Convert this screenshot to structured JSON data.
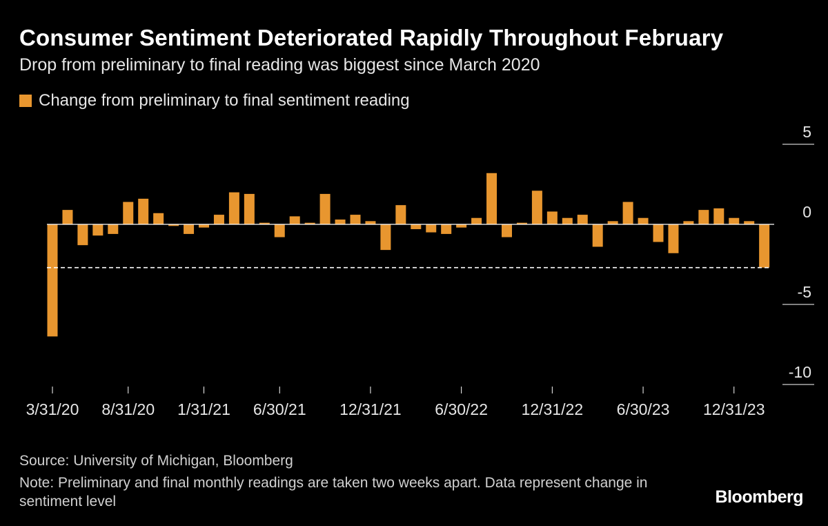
{
  "title": "Consumer Sentiment Deteriorated Rapidly Throughout February",
  "subtitle": "Drop from preliminary to final reading was biggest since March 2020",
  "legend_label": "Change from preliminary to final sentiment reading",
  "source": "Source: University of Michigan, Bloomberg",
  "note": "Note: Preliminary and final monthly readings are taken two weeks apart. Data represent change in sentiment level",
  "brand": "Bloomberg",
  "colors": {
    "bar": "#e8962f",
    "background": "#000000",
    "text": "#ffffff"
  },
  "chart_data": {
    "type": "bar",
    "title": "Consumer Sentiment Deteriorated Rapidly Throughout February",
    "series": [
      {
        "name": "Change from preliminary to final sentiment reading",
        "values": [
          -7.0,
          0.9,
          -1.3,
          -0.7,
          -0.6,
          1.4,
          1.6,
          0.7,
          -0.1,
          -0.6,
          -0.2,
          0.6,
          2.0,
          1.9,
          0.1,
          -0.8,
          0.5,
          0.1,
          1.9,
          0.3,
          0.6,
          0.2,
          -1.6,
          1.2,
          -0.3,
          -0.5,
          -0.6,
          -0.2,
          0.4,
          3.2,
          -0.8,
          0.1,
          2.1,
          0.8,
          0.4,
          0.6,
          -1.4,
          0.2,
          1.4,
          0.4,
          -1.1,
          -1.8,
          0.2,
          0.9,
          1.0,
          0.4,
          0.2,
          -2.7
        ]
      }
    ],
    "x_tick_labels": [
      "3/31/20",
      "8/31/20",
      "1/31/21",
      "6/30/21",
      "12/31/21",
      "6/30/22",
      "12/31/22",
      "6/30/23",
      "12/31/23"
    ],
    "x_tick_indices": [
      0,
      5,
      10,
      15,
      21,
      27,
      33,
      39,
      45
    ],
    "y_ticks": [
      5,
      0,
      -5,
      -10
    ],
    "y_tick_labels": [
      "5",
      "0",
      "-5",
      "-10"
    ],
    "ylim": [
      -10,
      5
    ],
    "reference_line": {
      "value": -2.7,
      "style": "dashed"
    },
    "xlabel": "",
    "ylabel": ""
  }
}
